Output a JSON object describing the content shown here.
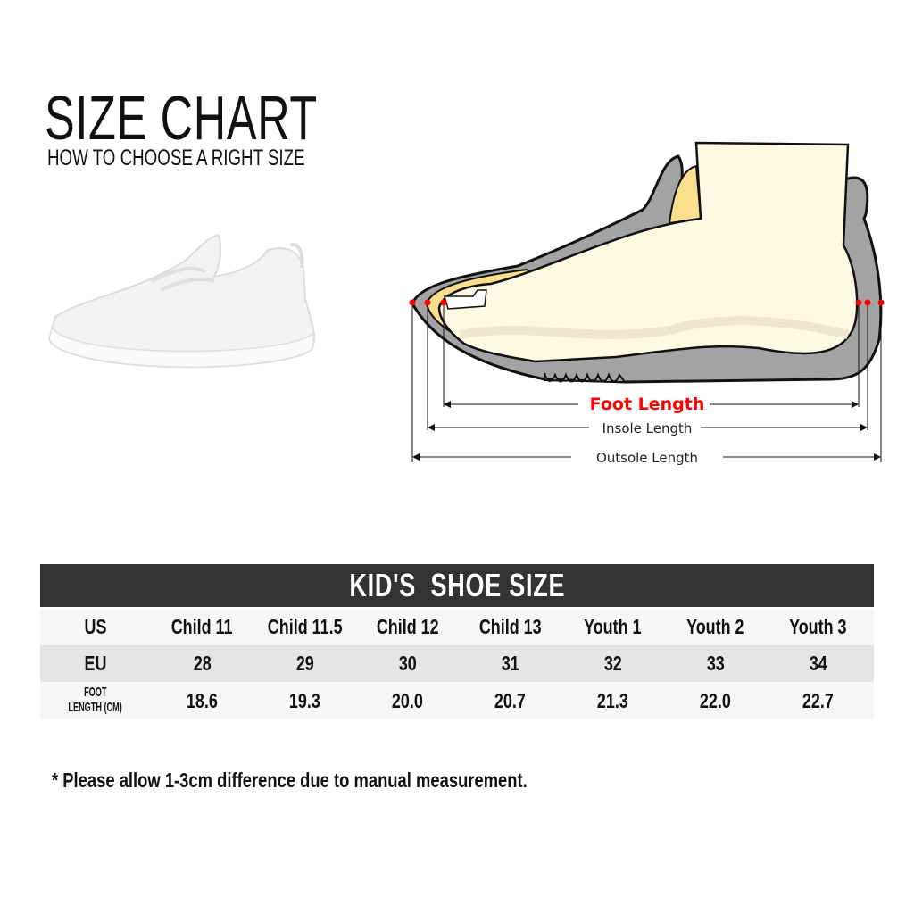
{
  "header": {
    "title": "SIZE CHART",
    "subtitle": "HOW TO CHOOSE A RIGHT SIZE"
  },
  "diagram": {
    "foot_length_label": "Foot Length",
    "insole_length_label": "Insole Length",
    "outsole_length_label": "Outsole Length",
    "colors": {
      "foot_length": "#ff0000",
      "outsole": "#a3a3a3",
      "insole": "#f9df8e",
      "foot": "#fdf9e3"
    }
  },
  "table": {
    "title": "KID'S  SHOE SIZE",
    "rows": [
      {
        "label": "US",
        "values": [
          "Child 11",
          "Child 11.5",
          "Child 12",
          "Child 13",
          "Youth 1",
          "Youth 2",
          "Youth 3"
        ]
      },
      {
        "label": "EU",
        "values": [
          "28",
          "29",
          "30",
          "31",
          "32",
          "33",
          "34"
        ]
      },
      {
        "label": "FOOT LENGTH (CM)",
        "label_lines": [
          "FOOT",
          "LENGTH (CM)"
        ],
        "values": [
          "18.6",
          "19.3",
          "20.0",
          "20.7",
          "21.3",
          "22.0",
          "22.7"
        ]
      }
    ]
  },
  "note": "* Please allow 1-3cm difference due to manual measurement."
}
